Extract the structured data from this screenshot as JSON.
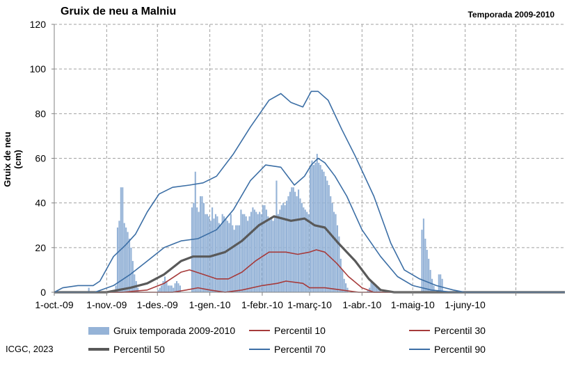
{
  "header": {
    "title": "Gruix de neu a Malniu",
    "season": "Temporada 2009-2010"
  },
  "footer": {
    "credit": "ICGC, 2023"
  },
  "colors": {
    "bars": "#95b3d7",
    "p10": "#a63a3a",
    "p30": "#a63a3a",
    "p50": "#595959",
    "p70": "#3b6ea5",
    "p90": "#3b6ea5",
    "grid": "#a0a0a0"
  },
  "chart_data": {
    "type": "bar",
    "xlabel": "",
    "ylabel": "Gruix de neu (cm)",
    "ylim": [
      0,
      120
    ],
    "yticks": [
      "0",
      "20",
      "40",
      "60",
      "80",
      "100",
      "120"
    ],
    "xlim": [
      "2009-10-01",
      "2010-07-30"
    ],
    "xticks": [
      "1-oct.-09",
      "1-nov.-09",
      "1-des.-09",
      "1-gen.-10",
      "1-febr.-10",
      "1-març-10",
      "1-abr.-10",
      "1-maig-10",
      "1-juny-10"
    ],
    "grid": true,
    "legend_position": "bottom",
    "legend": [
      "Gruix temporada 2009-2010",
      "Percentil 10",
      "Percentil 30",
      "Percentil 50",
      "Percentil 70",
      "Percentil 90"
    ],
    "bars": {
      "name": "Gruix temporada 2009-2010",
      "points": [
        [
          "2009-10-21",
          2
        ],
        [
          "2009-11-06",
          3
        ],
        [
          "2009-11-07",
          29
        ],
        [
          "2009-11-08",
          32
        ],
        [
          "2009-11-09",
          47
        ],
        [
          "2009-11-10",
          47
        ],
        [
          "2009-11-11",
          31
        ],
        [
          "2009-11-12",
          29
        ],
        [
          "2009-11-13",
          27
        ],
        [
          "2009-11-14",
          24
        ],
        [
          "2009-11-15",
          20
        ],
        [
          "2009-11-16",
          14
        ],
        [
          "2009-11-17",
          8
        ],
        [
          "2009-11-18",
          5
        ],
        [
          "2009-11-19",
          2
        ],
        [
          "2009-12-01",
          1
        ],
        [
          "2009-12-02",
          2
        ],
        [
          "2009-12-03",
          3
        ],
        [
          "2009-12-04",
          5
        ],
        [
          "2009-12-05",
          7
        ],
        [
          "2009-12-06",
          5
        ],
        [
          "2009-12-07",
          3
        ],
        [
          "2009-12-08",
          3
        ],
        [
          "2009-12-09",
          3
        ],
        [
          "2009-12-10",
          2
        ],
        [
          "2009-12-11",
          4
        ],
        [
          "2009-12-12",
          5
        ],
        [
          "2009-12-13",
          4
        ],
        [
          "2009-12-14",
          3
        ],
        [
          "2009-12-21",
          38
        ],
        [
          "2009-12-22",
          40
        ],
        [
          "2009-12-23",
          54
        ],
        [
          "2009-12-24",
          38
        ],
        [
          "2009-12-25",
          36
        ],
        [
          "2009-12-26",
          43
        ],
        [
          "2009-12-27",
          43
        ],
        [
          "2009-12-28",
          40
        ],
        [
          "2009-12-29",
          35
        ],
        [
          "2009-12-30",
          35
        ],
        [
          "2009-12-31",
          34
        ],
        [
          "2010-01-01",
          32
        ],
        [
          "2010-01-02",
          38
        ],
        [
          "2010-01-03",
          33
        ],
        [
          "2010-01-04",
          35
        ],
        [
          "2010-01-05",
          34
        ],
        [
          "2010-01-06",
          31
        ],
        [
          "2010-01-07",
          30
        ],
        [
          "2010-01-08",
          35
        ],
        [
          "2010-01-09",
          34
        ],
        [
          "2010-01-10",
          33
        ],
        [
          "2010-01-11",
          32
        ],
        [
          "2010-01-12",
          31
        ],
        [
          "2010-01-13",
          35
        ],
        [
          "2010-01-14",
          30
        ],
        [
          "2010-01-15",
          28
        ],
        [
          "2010-01-16",
          30
        ],
        [
          "2010-01-17",
          30
        ],
        [
          "2010-01-18",
          30
        ],
        [
          "2010-01-19",
          37
        ],
        [
          "2010-01-20",
          35
        ],
        [
          "2010-01-21",
          35
        ],
        [
          "2010-01-22",
          34
        ],
        [
          "2010-01-23",
          32
        ],
        [
          "2010-01-24",
          34
        ],
        [
          "2010-01-25",
          36
        ],
        [
          "2010-01-26",
          38
        ],
        [
          "2010-01-27",
          37
        ],
        [
          "2010-01-28",
          36
        ],
        [
          "2010-01-29",
          35
        ],
        [
          "2010-01-30",
          36
        ],
        [
          "2010-01-31",
          35
        ],
        [
          "2010-02-01",
          39
        ],
        [
          "2010-02-02",
          39
        ],
        [
          "2010-02-03",
          37
        ],
        [
          "2010-02-04",
          34
        ],
        [
          "2010-02-05",
          33
        ],
        [
          "2010-02-06",
          33
        ],
        [
          "2010-02-07",
          32
        ],
        [
          "2010-02-08",
          34
        ],
        [
          "2010-02-09",
          50
        ],
        [
          "2010-02-10",
          35
        ],
        [
          "2010-02-11",
          37
        ],
        [
          "2010-02-12",
          39
        ],
        [
          "2010-02-13",
          40
        ],
        [
          "2010-02-14",
          39
        ],
        [
          "2010-02-15",
          41
        ],
        [
          "2010-02-16",
          43
        ],
        [
          "2010-02-17",
          45
        ],
        [
          "2010-02-18",
          47
        ],
        [
          "2010-02-19",
          47
        ],
        [
          "2010-02-20",
          45
        ],
        [
          "2010-02-21",
          43
        ],
        [
          "2010-02-22",
          46
        ],
        [
          "2010-02-23",
          42
        ],
        [
          "2010-02-24",
          40
        ],
        [
          "2010-02-25",
          38
        ],
        [
          "2010-02-26",
          37
        ],
        [
          "2010-02-27",
          36
        ],
        [
          "2010-02-28",
          35
        ],
        [
          "2010-03-01",
          56
        ],
        [
          "2010-03-02",
          59
        ],
        [
          "2010-03-03",
          57
        ],
        [
          "2010-03-04",
          58
        ],
        [
          "2010-03-05",
          62
        ],
        [
          "2010-03-06",
          58
        ],
        [
          "2010-03-07",
          57
        ],
        [
          "2010-03-08",
          55
        ],
        [
          "2010-03-09",
          54
        ],
        [
          "2010-03-10",
          52
        ],
        [
          "2010-03-11",
          50
        ],
        [
          "2010-03-12",
          48
        ],
        [
          "2010-03-13",
          43
        ],
        [
          "2010-03-14",
          40
        ],
        [
          "2010-03-15",
          36
        ],
        [
          "2010-03-16",
          35
        ],
        [
          "2010-03-17",
          30
        ],
        [
          "2010-03-18",
          25
        ],
        [
          "2010-03-19",
          15
        ],
        [
          "2010-03-20",
          10
        ],
        [
          "2010-03-21",
          6
        ],
        [
          "2010-03-22",
          4
        ],
        [
          "2010-03-23",
          2
        ],
        [
          "2010-04-04",
          1
        ],
        [
          "2010-04-05",
          2
        ],
        [
          "2010-04-06",
          5
        ],
        [
          "2010-04-07",
          4
        ],
        [
          "2010-04-08",
          4
        ],
        [
          "2010-04-09",
          3
        ],
        [
          "2010-04-10",
          2
        ],
        [
          "2010-04-11",
          1
        ],
        [
          "2010-05-06",
          28
        ],
        [
          "2010-05-07",
          33
        ],
        [
          "2010-05-08",
          24
        ],
        [
          "2010-05-09",
          19
        ],
        [
          "2010-05-10",
          15
        ],
        [
          "2010-05-11",
          10
        ],
        [
          "2010-05-12",
          6
        ],
        [
          "2010-05-13",
          3
        ],
        [
          "2010-05-16",
          8
        ],
        [
          "2010-05-17",
          8
        ],
        [
          "2010-05-18",
          6
        ]
      ]
    },
    "series": [
      {
        "name": "Percentil 10",
        "points": [
          [
            "2009-10-01",
            0
          ],
          [
            "2009-12-10",
            0
          ],
          [
            "2009-12-18",
            1
          ],
          [
            "2009-12-25",
            2
          ],
          [
            "2010-01-01",
            1
          ],
          [
            "2010-01-10",
            0
          ],
          [
            "2010-01-20",
            1
          ],
          [
            "2010-02-01",
            3
          ],
          [
            "2010-02-10",
            4
          ],
          [
            "2010-02-15",
            5
          ],
          [
            "2010-02-25",
            4
          ],
          [
            "2010-03-01",
            2
          ],
          [
            "2010-03-10",
            2
          ],
          [
            "2010-03-20",
            1
          ],
          [
            "2010-03-30",
            0
          ],
          [
            "2010-07-30",
            0
          ]
        ]
      },
      {
        "name": "Percentil 30",
        "points": [
          [
            "2009-10-01",
            0
          ],
          [
            "2009-11-10",
            0
          ],
          [
            "2009-11-25",
            1
          ],
          [
            "2009-12-05",
            4
          ],
          [
            "2009-12-15",
            9
          ],
          [
            "2009-12-20",
            10
          ],
          [
            "2009-12-28",
            8
          ],
          [
            "2010-01-05",
            6
          ],
          [
            "2010-01-12",
            6
          ],
          [
            "2010-01-20",
            9
          ],
          [
            "2010-01-28",
            14
          ],
          [
            "2010-02-05",
            18
          ],
          [
            "2010-02-15",
            18
          ],
          [
            "2010-02-22",
            17
          ],
          [
            "2010-03-01",
            18
          ],
          [
            "2010-03-05",
            19
          ],
          [
            "2010-03-10",
            18
          ],
          [
            "2010-03-17",
            13
          ],
          [
            "2010-03-24",
            7
          ],
          [
            "2010-04-01",
            2
          ],
          [
            "2010-04-08",
            0
          ],
          [
            "2010-07-30",
            0
          ]
        ]
      },
      {
        "name": "Percentil 50",
        "points": [
          [
            "2009-10-01",
            0
          ],
          [
            "2009-11-01",
            0
          ],
          [
            "2009-11-15",
            2
          ],
          [
            "2009-11-25",
            4
          ],
          [
            "2009-12-05",
            8
          ],
          [
            "2009-12-15",
            14
          ],
          [
            "2009-12-22",
            16
          ],
          [
            "2010-01-01",
            16
          ],
          [
            "2010-01-10",
            18
          ],
          [
            "2010-01-20",
            23
          ],
          [
            "2010-01-30",
            30
          ],
          [
            "2010-02-08",
            34
          ],
          [
            "2010-02-18",
            32
          ],
          [
            "2010-02-26",
            33
          ],
          [
            "2010-03-04",
            30
          ],
          [
            "2010-03-10",
            29
          ],
          [
            "2010-03-18",
            22
          ],
          [
            "2010-03-28",
            14
          ],
          [
            "2010-04-05",
            6
          ],
          [
            "2010-04-12",
            1
          ],
          [
            "2010-04-20",
            0
          ],
          [
            "2010-07-30",
            0
          ]
        ]
      },
      {
        "name": "Percentil 70",
        "points": [
          [
            "2009-10-01",
            0
          ],
          [
            "2009-10-25",
            0
          ],
          [
            "2009-11-05",
            3
          ],
          [
            "2009-11-15",
            8
          ],
          [
            "2009-11-25",
            14
          ],
          [
            "2009-12-05",
            20
          ],
          [
            "2009-12-15",
            23
          ],
          [
            "2009-12-25",
            24
          ],
          [
            "2010-01-05",
            28
          ],
          [
            "2010-01-15",
            37
          ],
          [
            "2010-01-25",
            50
          ],
          [
            "2010-02-03",
            57
          ],
          [
            "2010-02-12",
            56
          ],
          [
            "2010-02-20",
            48
          ],
          [
            "2010-02-26",
            52
          ],
          [
            "2010-03-02",
            57
          ],
          [
            "2010-03-06",
            60
          ],
          [
            "2010-03-10",
            58
          ],
          [
            "2010-03-16",
            52
          ],
          [
            "2010-03-23",
            43
          ],
          [
            "2010-04-01",
            28
          ],
          [
            "2010-04-12",
            16
          ],
          [
            "2010-04-22",
            7
          ],
          [
            "2010-05-01",
            3
          ],
          [
            "2010-05-12",
            1
          ],
          [
            "2010-05-25",
            0
          ],
          [
            "2010-07-30",
            0
          ]
        ]
      },
      {
        "name": "Percentil 90",
        "points": [
          [
            "2009-10-01",
            0
          ],
          [
            "2009-10-06",
            2
          ],
          [
            "2009-10-15",
            3
          ],
          [
            "2009-10-24",
            3
          ],
          [
            "2009-10-28",
            5
          ],
          [
            "2009-11-05",
            16
          ],
          [
            "2009-11-12",
            21
          ],
          [
            "2009-11-18",
            26
          ],
          [
            "2009-11-25",
            36
          ],
          [
            "2009-12-02",
            44
          ],
          [
            "2009-12-10",
            47
          ],
          [
            "2009-12-20",
            48
          ],
          [
            "2009-12-28",
            49
          ],
          [
            "2010-01-05",
            52
          ],
          [
            "2010-01-15",
            62
          ],
          [
            "2010-01-25",
            74
          ],
          [
            "2010-02-05",
            86
          ],
          [
            "2010-02-12",
            89
          ],
          [
            "2010-02-18",
            85
          ],
          [
            "2010-02-25",
            83
          ],
          [
            "2010-03-02",
            90
          ],
          [
            "2010-03-06",
            90
          ],
          [
            "2010-03-12",
            86
          ],
          [
            "2010-03-20",
            73
          ],
          [
            "2010-03-28",
            61
          ],
          [
            "2010-04-08",
            43
          ],
          [
            "2010-04-18",
            22
          ],
          [
            "2010-04-26",
            10
          ],
          [
            "2010-05-05",
            6
          ],
          [
            "2010-05-15",
            3
          ],
          [
            "2010-05-25",
            1
          ],
          [
            "2010-06-01",
            0
          ],
          [
            "2010-07-30",
            0
          ]
        ]
      }
    ]
  }
}
